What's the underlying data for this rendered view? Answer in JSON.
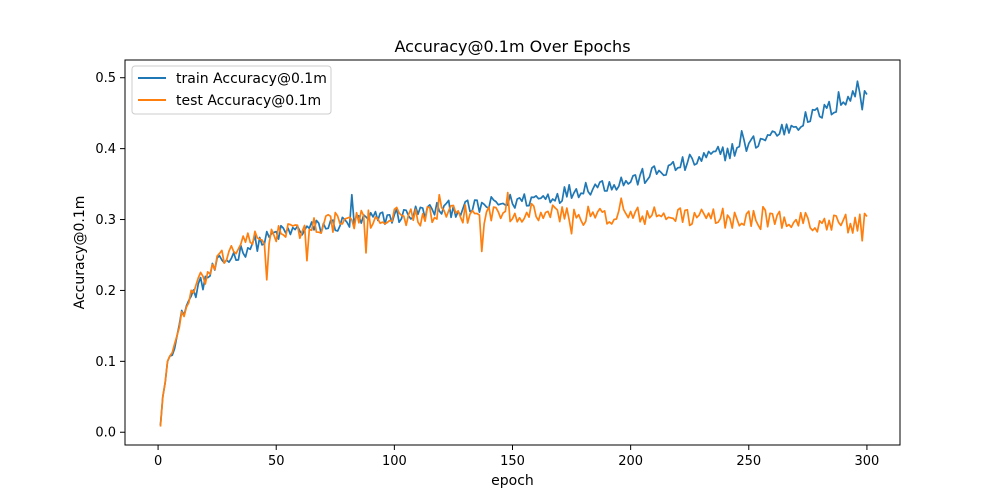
{
  "chart_data": {
    "type": "line",
    "title": "Accuracy@0.1m Over Epochs",
    "xlabel": "epoch",
    "ylabel": "Accuracy@0.1m",
    "xlim": [
      -14,
      314
    ],
    "ylim": [
      -0.018,
      0.525
    ],
    "xticks": [
      0,
      50,
      100,
      150,
      200,
      250,
      300
    ],
    "yticks": [
      0.0,
      0.1,
      0.2,
      0.3,
      0.4,
      0.5
    ],
    "grid": false,
    "legend_position": "top-left",
    "x_range": [
      1,
      300
    ],
    "series": [
      {
        "name": "train Accuracy@0.1m",
        "color": "#1f77b4",
        "key_points": [
          [
            1,
            0.01
          ],
          [
            2,
            0.05
          ],
          [
            3,
            0.07
          ],
          [
            4,
            0.1
          ],
          [
            6,
            0.115
          ],
          [
            8,
            0.135
          ],
          [
            10,
            0.165
          ],
          [
            13,
            0.185
          ],
          [
            16,
            0.2
          ],
          [
            20,
            0.215
          ],
          [
            25,
            0.235
          ],
          [
            30,
            0.245
          ],
          [
            35,
            0.255
          ],
          [
            40,
            0.265
          ],
          [
            45,
            0.27
          ],
          [
            50,
            0.28
          ],
          [
            60,
            0.285
          ],
          [
            70,
            0.29
          ],
          [
            80,
            0.295
          ],
          [
            90,
            0.3
          ],
          [
            100,
            0.305
          ],
          [
            110,
            0.31
          ],
          [
            120,
            0.315
          ],
          [
            130,
            0.315
          ],
          [
            140,
            0.32
          ],
          [
            150,
            0.325
          ],
          [
            160,
            0.33
          ],
          [
            170,
            0.335
          ],
          [
            180,
            0.345
          ],
          [
            190,
            0.35
          ],
          [
            200,
            0.355
          ],
          [
            210,
            0.365
          ],
          [
            220,
            0.375
          ],
          [
            230,
            0.385
          ],
          [
            240,
            0.395
          ],
          [
            250,
            0.405
          ],
          [
            260,
            0.42
          ],
          [
            270,
            0.435
          ],
          [
            280,
            0.45
          ],
          [
            290,
            0.465
          ],
          [
            295,
            0.475
          ],
          [
            300,
            0.487
          ]
        ],
        "notable_points": [
          [
            82,
            0.335
          ],
          [
            247,
            0.425
          ],
          [
            288,
            0.48
          ],
          [
            296,
            0.495
          ],
          [
            298,
            0.455
          ]
        ],
        "noise": 0.012
      },
      {
        "name": "test Accuracy@0.1m",
        "color": "#ff7f0e",
        "key_points": [
          [
            1,
            0.008
          ],
          [
            2,
            0.05
          ],
          [
            3,
            0.07
          ],
          [
            4,
            0.1
          ],
          [
            6,
            0.115
          ],
          [
            8,
            0.135
          ],
          [
            10,
            0.165
          ],
          [
            13,
            0.185
          ],
          [
            16,
            0.205
          ],
          [
            20,
            0.22
          ],
          [
            25,
            0.235
          ],
          [
            30,
            0.255
          ],
          [
            35,
            0.265
          ],
          [
            40,
            0.27
          ],
          [
            50,
            0.28
          ],
          [
            60,
            0.285
          ],
          [
            70,
            0.295
          ],
          [
            80,
            0.298
          ],
          [
            90,
            0.3
          ],
          [
            100,
            0.305
          ],
          [
            110,
            0.305
          ],
          [
            120,
            0.305
          ],
          [
            130,
            0.307
          ],
          [
            140,
            0.308
          ],
          [
            150,
            0.31
          ],
          [
            160,
            0.31
          ],
          [
            170,
            0.308
          ],
          [
            180,
            0.305
          ],
          [
            190,
            0.305
          ],
          [
            200,
            0.305
          ],
          [
            210,
            0.305
          ],
          [
            220,
            0.305
          ],
          [
            230,
            0.303
          ],
          [
            240,
            0.302
          ],
          [
            250,
            0.3
          ],
          [
            260,
            0.3
          ],
          [
            270,
            0.298
          ],
          [
            280,
            0.296
          ],
          [
            290,
            0.294
          ],
          [
            300,
            0.295
          ]
        ],
        "notable_points": [
          [
            46,
            0.215
          ],
          [
            63,
            0.242
          ],
          [
            88,
            0.253
          ],
          [
            119,
            0.335
          ],
          [
            137,
            0.255
          ],
          [
            148,
            0.338
          ],
          [
            175,
            0.28
          ],
          [
            196,
            0.33
          ],
          [
            256,
            0.318
          ],
          [
            287,
            0.305
          ],
          [
            298,
            0.27
          ]
        ],
        "noise": 0.014
      }
    ]
  }
}
